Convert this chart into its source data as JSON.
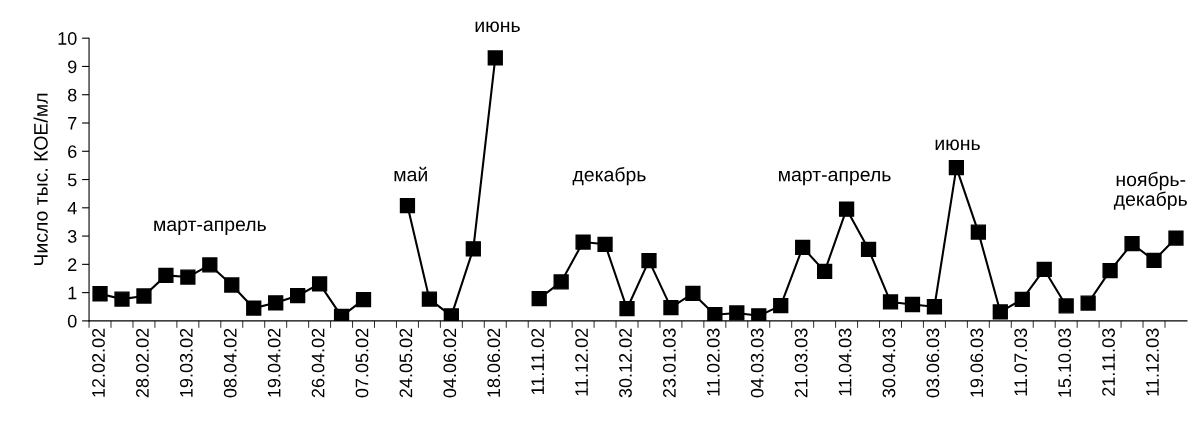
{
  "chart_data": {
    "type": "line",
    "ylabel": "Число тыс. КОЕ/мл",
    "categories": [
      "12.02.02",
      null,
      "28.02.02",
      null,
      "19.03.02",
      null,
      "08.04.02",
      null,
      "19.04.02",
      null,
      "26.04.02",
      null,
      "07.05.02",
      null,
      "24.05.02",
      null,
      "04.06.02",
      null,
      "18.06.02",
      null,
      "11.11.02",
      null,
      "11.12.02",
      null,
      "30.12.02",
      null,
      "23.01.03",
      null,
      "11.02.03",
      null,
      "04.03.03",
      null,
      "21.03.03",
      null,
      "11.04.03",
      null,
      "30.04.03",
      null,
      "03.06.03",
      null,
      "19.06.03",
      null,
      "11.07.03",
      null,
      "15.10.03",
      null,
      "21.11.03",
      null,
      "11.12.03",
      null
    ],
    "series": [
      {
        "color": "#000000",
        "values": [
          0.96,
          0.77,
          0.88,
          1.61,
          1.55,
          1.98,
          1.27,
          0.45,
          0.64,
          0.89,
          1.31,
          0.16,
          0.75,
          null,
          4.08,
          0.77,
          0.18,
          2.55,
          9.3,
          null,
          0.79,
          1.38,
          2.79,
          2.71,
          0.43,
          2.13,
          0.47,
          0.97,
          0.22,
          0.28,
          0.18,
          0.54,
          2.6,
          1.75,
          3.95,
          2.53,
          0.67,
          0.58,
          0.5,
          5.42,
          3.14,
          0.32,
          0.76,
          1.82,
          0.53,
          null,
          null,
          null,
          null,
          null
        ]
      },
      {
        "color": "#000000",
        "values": [
          null,
          null,
          null,
          null,
          null,
          null,
          null,
          null,
          null,
          null,
          null,
          null,
          null,
          null,
          null,
          null,
          null,
          null,
          null,
          null,
          null,
          null,
          null,
          null,
          null,
          null,
          null,
          null,
          null,
          null,
          null,
          null,
          null,
          null,
          null,
          null,
          null,
          null,
          null,
          null,
          null,
          null,
          null,
          null,
          null,
          0.63,
          1.78,
          2.73,
          2.14,
          2.93
        ]
      }
    ],
    "ylim": [
      0,
      10
    ],
    "yticks": [
      0,
      1,
      2,
      3,
      4,
      5,
      6,
      7,
      8,
      9,
      10
    ],
    "marker": "square",
    "line_style": "solid",
    "grid": false,
    "legend": false,
    "annotations": [
      "март-апрель",
      "май",
      "июнь",
      "декабрь",
      "март-апрель",
      "июнь",
      "ноябрь-\nдекабрь"
    ]
  }
}
